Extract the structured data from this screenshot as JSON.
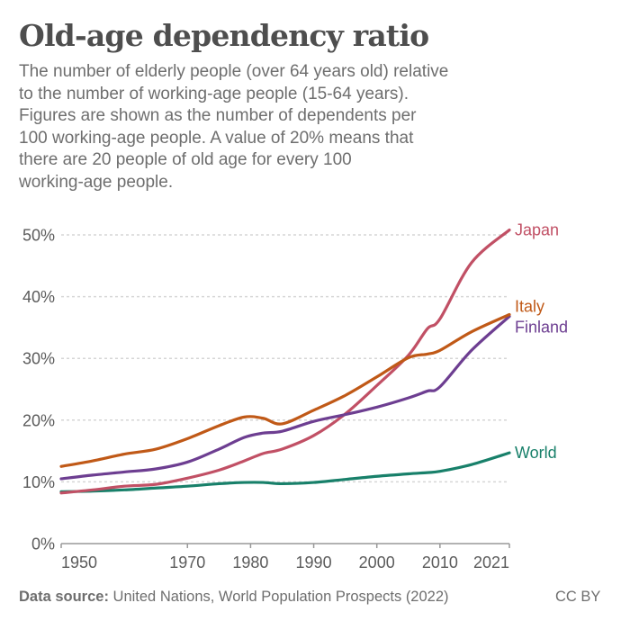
{
  "header": {
    "title": "Old-age dependency ratio",
    "subtitle_lines": [
      "The number of elderly people (over 64 years old) relative",
      "to the number of working-age people (15-64 years).",
      "Figures are shown as the number of dependents per",
      "100 working-age people. A value of 20% means that",
      "there are 20 people of old age for every 100",
      "working-age people."
    ]
  },
  "footer": {
    "source_label": "Data source:",
    "source_text": " United Nations, World Population Prospects (2022)",
    "license": "CC BY"
  },
  "chart_data": {
    "type": "line",
    "title": "Old-age dependency ratio",
    "xlabel": "",
    "ylabel": "",
    "xlim": [
      1950,
      2021
    ],
    "ylim": [
      0,
      50
    ],
    "x_ticks": [
      1950,
      1970,
      1980,
      1990,
      2000,
      2010,
      2021
    ],
    "y_ticks": [
      0,
      10,
      20,
      30,
      40,
      50
    ],
    "y_tick_labels": [
      "0%",
      "10%",
      "20%",
      "30%",
      "40%",
      "50%"
    ],
    "grid": "horizontal-dashed",
    "legend": "end-of-line-labels-right",
    "x": [
      1950,
      1955,
      1960,
      1965,
      1970,
      1975,
      1979,
      1982,
      1985,
      1990,
      1995,
      2000,
      2005,
      2008,
      2010,
      2015,
      2021
    ],
    "series": [
      {
        "name": "Japan",
        "color": "#c15065",
        "values": [
          8.2,
          8.7,
          9.3,
          9.6,
          10.6,
          11.9,
          13.4,
          14.6,
          15.3,
          17.5,
          21.0,
          25.6,
          30.5,
          34.8,
          36.4,
          45.5,
          50.8
        ]
      },
      {
        "name": "Italy",
        "color": "#c05917",
        "values": [
          12.5,
          13.4,
          14.5,
          15.3,
          17.0,
          19.1,
          20.5,
          20.3,
          19.4,
          21.6,
          24.0,
          27.0,
          30.1,
          30.7,
          31.3,
          34.3,
          37.1
        ]
      },
      {
        "name": "Finland",
        "color": "#6d3e91",
        "values": [
          10.5,
          11.1,
          11.6,
          12.1,
          13.2,
          15.3,
          17.2,
          17.9,
          18.2,
          19.8,
          20.9,
          22.1,
          23.6,
          24.7,
          25.4,
          31.3,
          36.8
        ]
      },
      {
        "name": "World",
        "color": "#18806a",
        "values": [
          8.4,
          8.5,
          8.7,
          9.0,
          9.3,
          9.7,
          9.9,
          9.9,
          9.7,
          9.9,
          10.4,
          10.9,
          11.3,
          11.5,
          11.7,
          12.8,
          14.7
        ]
      }
    ]
  }
}
